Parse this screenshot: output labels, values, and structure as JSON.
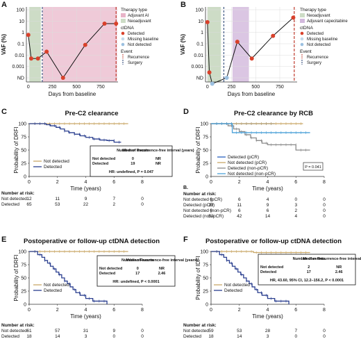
{
  "colors": {
    "detected": "#d9412b",
    "not_detected": "#9bc0e0",
    "missing": "#9bc0e0",
    "neoadjuvant": "#cddcc6",
    "adjuvant_ai": "#e8b4c8",
    "adjuvant_cape": "#d2b8dc",
    "km_not_detected": "#c9a868",
    "km_detected": "#2a3f8f",
    "km_not_detected_pcr": "#c9a868",
    "km_detected_pcr": "#2a60c0",
    "km_detected_nonpcr": "#8a8a8a",
    "km_not_detected_nonpcr": "#4aa0d8",
    "recurrence": "#c0392b",
    "surgery": "#1e3a6e"
  },
  "chart_data": [
    {
      "panel": "A",
      "type": "line",
      "xlabel": "Days from baseline",
      "ylabel": "VAF (%)",
      "y_scale": "log",
      "y_ticks": [
        "ND",
        "0.001",
        "0.01",
        "0.1",
        "1",
        "10",
        "100"
      ],
      "x_ticks": [
        0,
        250,
        500,
        750
      ],
      "xlim": [
        -20,
        930
      ],
      "points": [
        {
          "x": 0,
          "vaf": 0.6
        },
        {
          "x": 30,
          "vaf": 0.005
        },
        {
          "x": 100,
          "vaf": 0.005
        },
        {
          "x": 190,
          "vaf": 0.02
        },
        {
          "x": 360,
          "vaf": 0.0001
        },
        {
          "x": 590,
          "vaf": 0.08
        },
        {
          "x": 790,
          "vaf": 6
        },
        {
          "x": 910,
          "vaf": 6
        }
      ],
      "neoadjuvant": [
        10,
        130
      ],
      "adjuvant": [
        150,
        920
      ],
      "surgery_day": 145,
      "recurrence_day": 910,
      "legend": {
        "therapy_title": "Therapy type",
        "therapy": [
          "Adjuvant AI",
          "Neoadjuvant"
        ],
        "ctdna_title": "ctDNA",
        "ctdna": [
          "Detected",
          "Missing baseline",
          "Not detected"
        ],
        "event_title": "Event",
        "event": [
          "Recurrence",
          "Surgery"
        ]
      }
    },
    {
      "panel": "B",
      "type": "line",
      "xlabel": "Days from baseline",
      "ylabel": "VAF (%)",
      "y_scale": "log",
      "y_ticks": [
        "ND",
        "0.001",
        "0.01",
        "0.1",
        "1",
        "10",
        "100"
      ],
      "x_ticks": [
        0,
        250,
        500,
        750
      ],
      "xlim": [
        -20,
        930
      ],
      "points": [
        {
          "x": 0,
          "vaf": 8
        },
        {
          "x": 20,
          "vaf": 0.0003
        },
        {
          "x": 50,
          "vaf": 3e-05
        },
        {
          "x": 200,
          "vaf": "ND"
        },
        {
          "x": 310,
          "vaf": 0.15
        },
        {
          "x": 460,
          "vaf": 0.005
        },
        {
          "x": 680,
          "vaf": 0.5
        },
        {
          "x": 890,
          "vaf": 20
        }
      ],
      "not_detected_points": [
        {
          "x": 50,
          "vaf": "ND"
        },
        {
          "x": 200,
          "vaf": "ND"
        }
      ],
      "neoadjuvant": [
        0,
        140
      ],
      "adjuvant": [
        260,
        430
      ],
      "surgery_day": 170,
      "recurrence_day": 900,
      "legend": {
        "therapy_title": "Therapy type",
        "therapy": [
          "Neoadjuvant",
          "Adjuvant capecitabine"
        ],
        "ctdna_title": "ctDNA",
        "ctdna": [
          "Detected",
          "Missing baseline",
          "Not detected"
        ],
        "event_title": "Event",
        "event": [
          "Recurrence",
          "Surgery"
        ]
      }
    },
    {
      "panel": "C",
      "type": "line",
      "title": "Pre-C2 clearance",
      "xlabel": "Time (years)",
      "ylabel": "Probability of DRFI",
      "xlim": [
        0,
        8
      ],
      "ylim": [
        0,
        100
      ],
      "x_ticks": [
        0,
        2,
        4,
        6,
        8
      ],
      "y_ticks": [
        0,
        25,
        50,
        75,
        100
      ],
      "series": [
        {
          "name": "Not detected",
          "color_key": "km_not_detected",
          "steps": [
            [
              0,
              100
            ],
            [
              7,
              100
            ]
          ]
        },
        {
          "name": "Detected",
          "color_key": "km_detected",
          "steps": [
            [
              0,
              100
            ],
            [
              1.2,
              98
            ],
            [
              1.5,
              96
            ],
            [
              1.9,
              93
            ],
            [
              2.2,
              90
            ],
            [
              2.5,
              86
            ],
            [
              2.8,
              83
            ],
            [
              3.2,
              80
            ],
            [
              3.6,
              77
            ],
            [
              4.0,
              74
            ],
            [
              4.5,
              71
            ],
            [
              5.0,
              69
            ],
            [
              5.5,
              68
            ],
            [
              6.0,
              65
            ],
            [
              6.5,
              65
            ]
          ]
        }
      ],
      "table": {
        "headers": [
          "",
          "Number of events",
          "Median Recurrence-free interval (years)"
        ],
        "rows": [
          [
            "Not detected",
            "0",
            "NR"
          ],
          [
            "Detected",
            "19",
            "NR"
          ]
        ],
        "hr": "HR: undefined, P = 0.047"
      },
      "risk_title": "Number at risk:",
      "risk": [
        {
          "label": "Not detected",
          "values": [
            12,
            11,
            9,
            7,
            0
          ]
        },
        {
          "label": "Detected",
          "values": [
            65,
            53,
            22,
            2,
            0
          ]
        }
      ]
    },
    {
      "panel": "D",
      "type": "line",
      "title": "Pre-C2 clearance by RCB",
      "xlabel": "Time (years)",
      "ylabel": "Probability of DRFI",
      "xlim": [
        0,
        8
      ],
      "ylim": [
        0,
        100
      ],
      "x_ticks": [
        0,
        2,
        4,
        6,
        8
      ],
      "y_ticks": [
        0,
        25,
        50,
        75,
        100
      ],
      "series": [
        {
          "name": "Detected (pCR)",
          "color_key": "km_detected_pcr",
          "steps": [
            [
              0,
              100
            ],
            [
              4.5,
              100
            ]
          ]
        },
        {
          "name": "Not detected (pCR)",
          "color_key": "km_not_detected_pcr",
          "steps": [
            [
              0,
              100
            ],
            [
              6.5,
              100
            ]
          ]
        },
        {
          "name": "Detected (non-pCR)",
          "color_key": "km_detected_nonpcr",
          "steps": [
            [
              0,
              100
            ],
            [
              1.2,
              96
            ],
            [
              1.6,
              90
            ],
            [
              2.0,
              85
            ],
            [
              2.4,
              79
            ],
            [
              2.8,
              73
            ],
            [
              3.2,
              68
            ],
            [
              3.6,
              63
            ],
            [
              4.0,
              60
            ],
            [
              5.0,
              60
            ],
            [
              6.0,
              50
            ],
            [
              7.0,
              50
            ]
          ]
        },
        {
          "name": "Not detected (non-pCR)",
          "color_key": "km_not_detected_nonpcr",
          "steps": [
            [
              0,
              100
            ],
            [
              1.5,
              100
            ],
            [
              1.5,
              83
            ],
            [
              7,
              83
            ]
          ]
        }
      ],
      "p_value": "P = 0.041",
      "risk_title": "Number at risk:",
      "risk_prefix": "B.",
      "risk": [
        {
          "label": "Not detected (pCR)",
          "values": [
            6,
            6,
            4,
            0,
            0
          ]
        },
        {
          "label": "Detected (pCR)",
          "values": [
            12,
            11,
            9,
            3,
            0
          ]
        },
        {
          "label": "Not detected (non-pCR)",
          "values": [
            6,
            6,
            6,
            2,
            0
          ]
        },
        {
          "label": "Detected (non-pCR)",
          "values": [
            53,
            42,
            14,
            4,
            0
          ]
        }
      ]
    },
    {
      "panel": "E",
      "type": "line",
      "title": "Postoperative or follow-up ctDNA detection",
      "xlabel": "Time (years)",
      "ylabel": "Probability of DRFI",
      "xlim": [
        0,
        8
      ],
      "ylim": [
        0,
        100
      ],
      "x_ticks": [
        0,
        2,
        4,
        6,
        8
      ],
      "y_ticks": [
        0,
        25,
        50,
        75,
        100
      ],
      "series": [
        {
          "name": "Not detected",
          "color_key": "km_not_detected",
          "steps": [
            [
              0,
              100
            ],
            [
              7,
              100
            ]
          ]
        },
        {
          "name": "Detected",
          "color_key": "km_detected",
          "steps": [
            [
              0,
              100
            ],
            [
              0.6,
              94
            ],
            [
              0.9,
              89
            ],
            [
              1.1,
              83
            ],
            [
              1.3,
              78
            ],
            [
              1.5,
              72
            ],
            [
              1.7,
              67
            ],
            [
              1.9,
              61
            ],
            [
              2.1,
              56
            ],
            [
              2.3,
              50
            ],
            [
              2.5,
              44
            ],
            [
              2.7,
              39
            ],
            [
              2.9,
              33
            ],
            [
              3.1,
              28
            ],
            [
              3.3,
              22
            ],
            [
              3.6,
              17
            ],
            [
              4.0,
              11
            ],
            [
              4.5,
              6
            ],
            [
              5.5,
              0
            ]
          ]
        }
      ],
      "table": {
        "headers": [
          "",
          "Number of events",
          "Median Recurrence-free interval (years)"
        ],
        "rows": [
          [
            "Not detected",
            "0",
            "NR"
          ],
          [
            "Detected",
            "17",
            "2.46"
          ]
        ],
        "hr": "HR: undefined, P < 0.0001"
      },
      "risk_title": "Number at risk:",
      "risk": [
        {
          "label": "Not detected",
          "values": [
            61,
            57,
            31,
            9,
            0
          ]
        },
        {
          "label": "Detected",
          "values": [
            18,
            14,
            3,
            0,
            0
          ]
        }
      ]
    },
    {
      "panel": "F",
      "type": "line",
      "title": "Postoperative or follow-up ctDNA detection",
      "xlabel": "Time (years)",
      "ylabel": "Probability of IDFI",
      "xlim": [
        0,
        8
      ],
      "ylim": [
        0,
        100
      ],
      "x_ticks": [
        0,
        2,
        4,
        6,
        8
      ],
      "y_ticks": [
        0,
        25,
        50,
        75,
        100
      ],
      "series": [
        {
          "name": "Not detected",
          "color_key": "km_not_detected",
          "steps": [
            [
              0,
              100
            ],
            [
              3.0,
              100
            ],
            [
              3.0,
              98
            ],
            [
              7,
              98
            ]
          ]
        },
        {
          "name": "Detected",
          "color_key": "km_detected",
          "steps": [
            [
              0,
              100
            ],
            [
              0.6,
              94
            ],
            [
              0.9,
              89
            ],
            [
              1.1,
              83
            ],
            [
              1.3,
              78
            ],
            [
              1.5,
              72
            ],
            [
              1.7,
              67
            ],
            [
              1.9,
              61
            ],
            [
              2.1,
              56
            ],
            [
              2.3,
              50
            ],
            [
              2.5,
              44
            ],
            [
              2.7,
              39
            ],
            [
              2.9,
              33
            ],
            [
              3.1,
              28
            ],
            [
              3.3,
              22
            ],
            [
              3.6,
              17
            ],
            [
              4.0,
              11
            ],
            [
              4.5,
              6
            ],
            [
              5.5,
              0
            ]
          ]
        }
      ],
      "table": {
        "headers": [
          "",
          "Number of events",
          "Median Recurrence-free interval (years)"
        ],
        "rows": [
          [
            "Not detected",
            "2",
            "NR"
          ],
          [
            "Detected",
            "17",
            "2.46"
          ]
        ],
        "hr": "HR, 43.60, 95% CI, 12.2–156.2, P < 0.0001"
      },
      "risk_title": "Number at risk:",
      "risk": [
        {
          "label": "Not detected",
          "values": [
            59,
            53,
            28,
            7,
            0
          ]
        },
        {
          "label": "Detected",
          "values": [
            18,
            14,
            3,
            0,
            0
          ]
        }
      ]
    }
  ]
}
